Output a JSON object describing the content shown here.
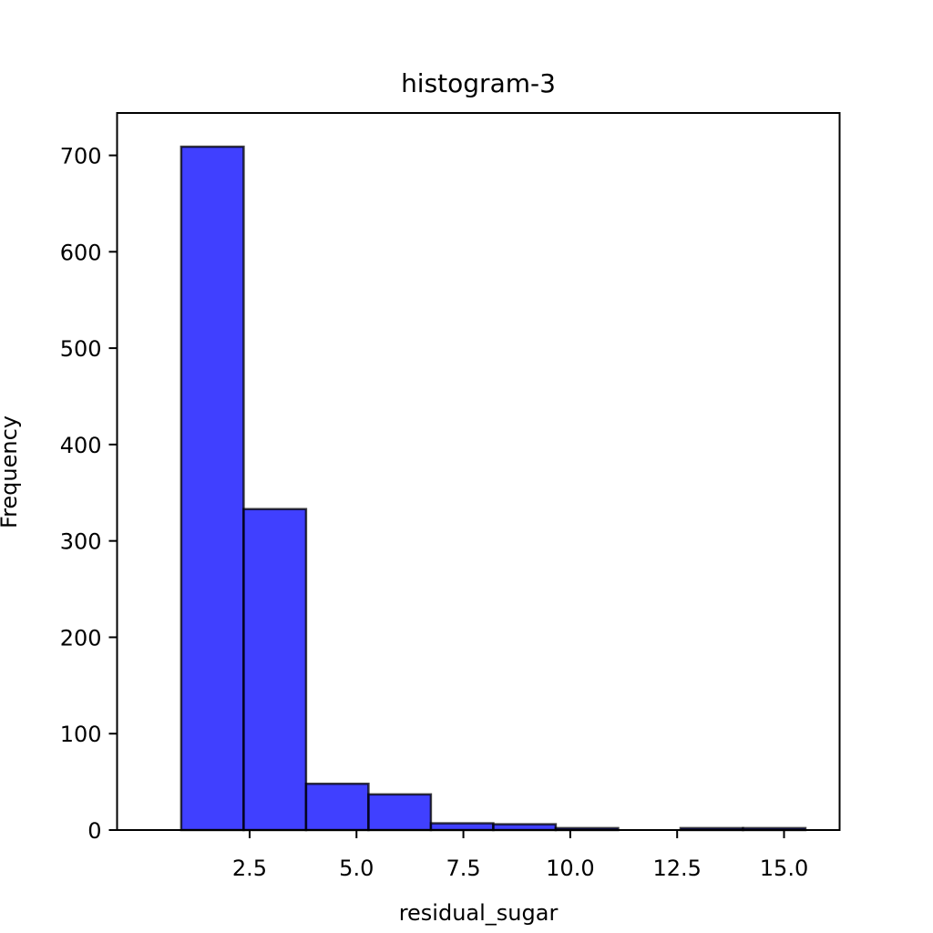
{
  "chart_data": {
    "type": "bar",
    "title": "histogram-3",
    "xlabel": "residual_sugar",
    "ylabel": "Frequency",
    "bin_edges": [
      0.9,
      2.36,
      3.82,
      5.28,
      6.74,
      8.2,
      9.66,
      11.12,
      12.58,
      14.04,
      15.5
    ],
    "values": [
      709,
      333,
      48,
      37,
      7,
      6,
      2,
      0,
      2,
      2
    ],
    "xlim": [
      -0.6,
      16.3
    ],
    "ylim": [
      0,
      744
    ],
    "xticks": [
      2.5,
      5.0,
      7.5,
      10.0,
      12.5,
      15.0
    ],
    "xtick_labels": [
      "2.5",
      "5.0",
      "7.5",
      "10.0",
      "12.5",
      "15.0"
    ],
    "yticks": [
      0,
      100,
      200,
      300,
      400,
      500,
      600,
      700
    ],
    "ytick_labels": [
      "0",
      "100",
      "200",
      "300",
      "400",
      "500",
      "600",
      "700"
    ],
    "bar_color": "#0000ff",
    "bar_opacity": 0.75,
    "edge_color": "#000000",
    "grid": false,
    "legend": "none"
  }
}
